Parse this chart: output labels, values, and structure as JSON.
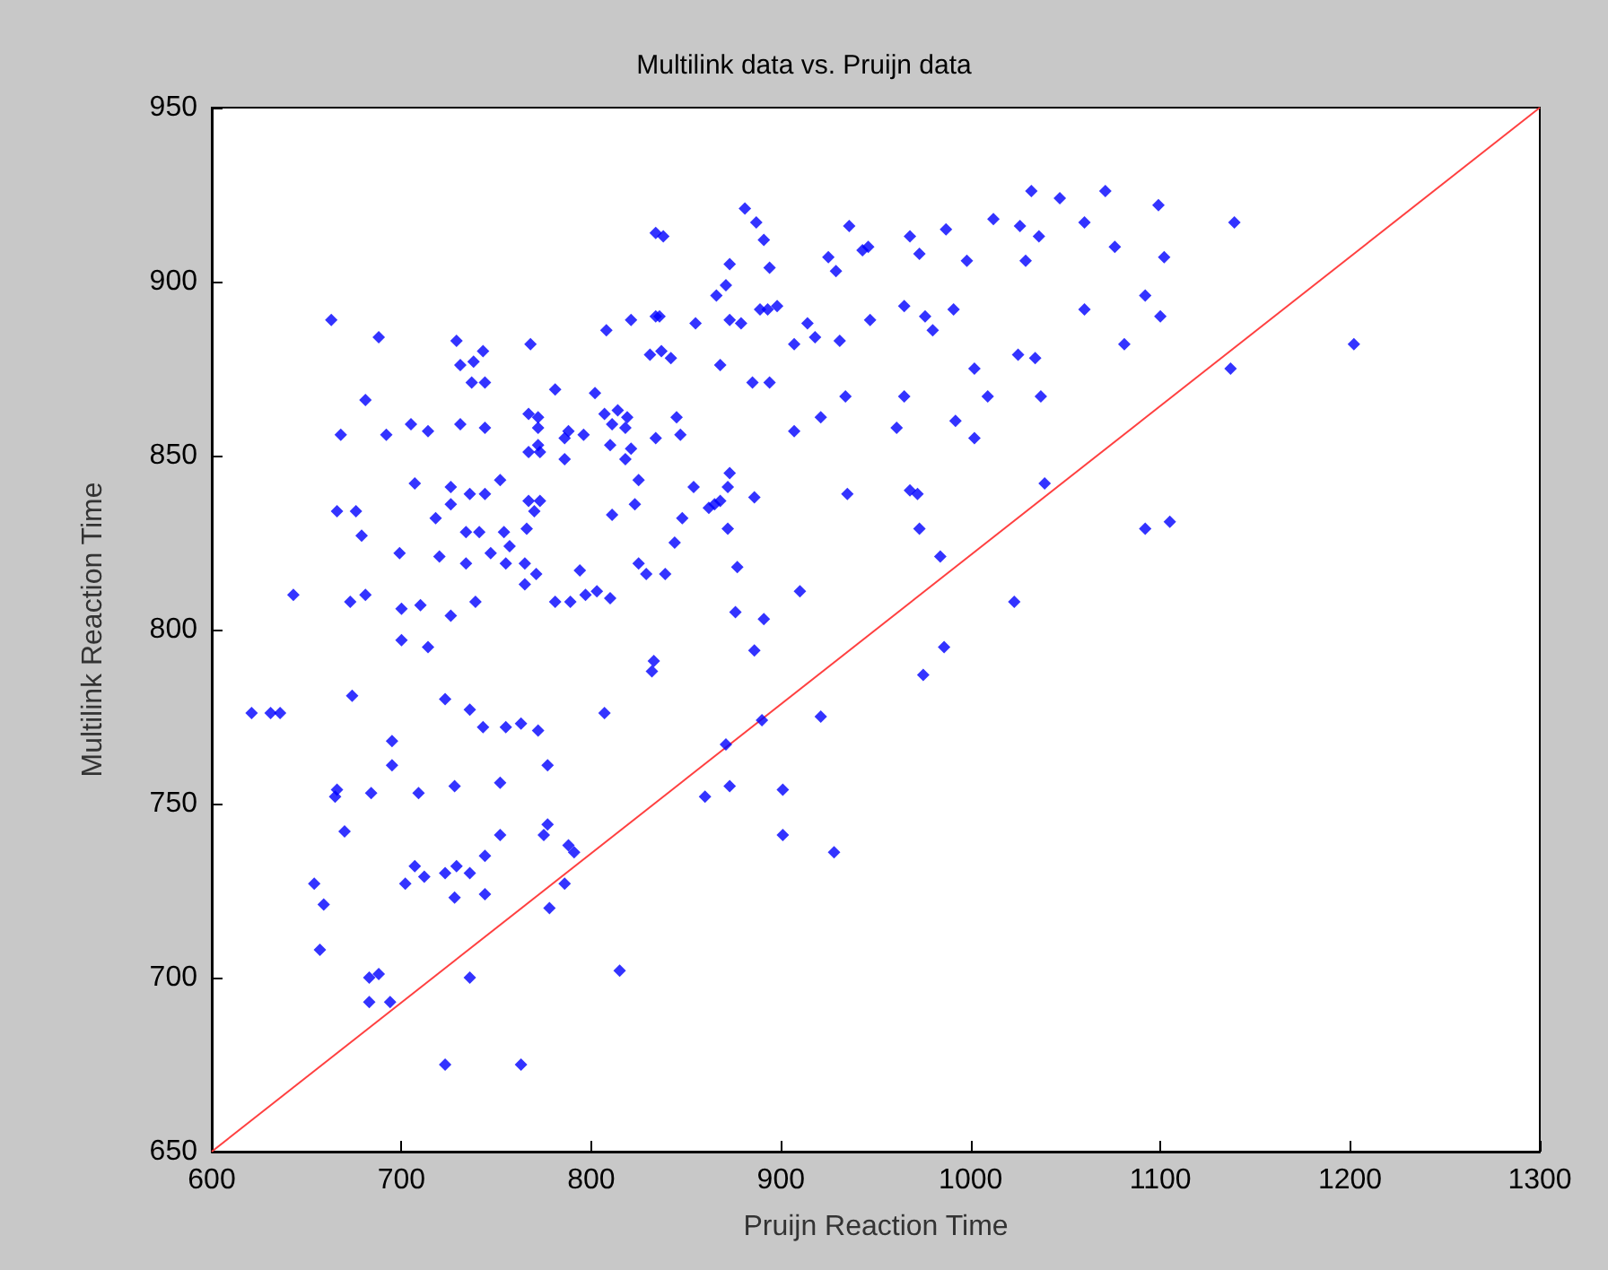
{
  "chart_data": {
    "type": "scatter",
    "title": "Multilink data vs. Pruijn data",
    "xlabel": "Pruijn Reaction Time",
    "ylabel": "Multilink Reaction Time",
    "xlim": [
      600,
      1300
    ],
    "xticks": [
      600,
      700,
      800,
      900,
      1000,
      1100,
      1200,
      1300
    ],
    "ylim": [
      650,
      950
    ],
    "yticks": [
      650,
      700,
      750,
      800,
      850,
      900,
      950
    ],
    "grid": false,
    "marker": "diamond",
    "series": [
      {
        "color": "#0000ff",
        "x": [
          663,
          688,
          729,
          743,
          738,
          731,
          768,
          808,
          821,
          834,
          737,
          744,
          781,
          802,
          681,
          807,
          814,
          819,
          811,
          818,
          767,
          772,
          731,
          744,
          705,
          714,
          692,
          668,
          772,
          788,
          796,
          786,
          772,
          767,
          773,
          786,
          810,
          821,
          818,
          825,
          752,
          707,
          726,
          736,
          744,
          726,
          767,
          773,
          770,
          666,
          676,
          679,
          718,
          811,
          823,
          734,
          741,
          754,
          766,
          757,
          699,
          720,
          747,
          734,
          755,
          765,
          771,
          765,
          794,
          825,
          643,
          673,
          681,
          700,
          710,
          726,
          739,
          781,
          789,
          797,
          803,
          810,
          700,
          714,
          674,
          723,
          736,
          621,
          631,
          636,
          807,
          743,
          755,
          763,
          772,
          695,
          695,
          777,
          666,
          665,
          684,
          709,
          728,
          752,
          670,
          777,
          775,
          752,
          788,
          791,
          744,
          707,
          729,
          723,
          736,
          712,
          702,
          654,
          786,
          659,
          728,
          744,
          778,
          657,
          683,
          688,
          736,
          683,
          694,
          815,
          723,
          763,
          881,
          887,
          891,
          873,
          894,
          834,
          838,
          936,
          925,
          929,
          943,
          946,
          968,
          973,
          987,
          998,
          1012,
          1026,
          1032,
          1036,
          1029,
          1047,
          1060,
          1071,
          871,
          866,
          836,
          855,
          873,
          879,
          889,
          893,
          898,
          914,
          918,
          907,
          931,
          947,
          965,
          976,
          980,
          991,
          1060,
          831,
          837,
          842,
          868,
          885,
          894,
          1002,
          1025,
          1034,
          1009,
          1037,
          934,
          965,
          921,
          907,
          961,
          992,
          1002,
          845,
          847,
          834,
          873,
          872,
          854,
          868,
          865,
          862,
          886,
          935,
          968,
          972,
          848,
          872,
          844,
          973,
          877,
          829,
          839,
          910,
          984,
          1039,
          876,
          891,
          886,
          1023,
          986,
          975,
          833,
          832,
          921,
          890,
          871,
          873,
          860,
          901,
          901,
          928,
          1099,
          1139,
          1076,
          1102,
          1092,
          1100,
          1081,
          1202,
          1137,
          1092,
          1105
        ],
        "values": [
          889,
          884,
          883,
          880,
          877,
          876,
          882,
          886,
          889,
          890,
          871,
          871,
          869,
          868,
          866,
          862,
          863,
          861,
          859,
          858,
          862,
          861,
          859,
          858,
          859,
          857,
          856,
          856,
          858,
          857,
          856,
          855,
          853,
          851,
          851,
          849,
          853,
          852,
          849,
          843,
          843,
          842,
          841,
          839,
          839,
          836,
          837,
          837,
          834,
          834,
          834,
          827,
          832,
          833,
          836,
          828,
          828,
          828,
          829,
          824,
          822,
          821,
          822,
          819,
          819,
          819,
          816,
          813,
          817,
          819,
          810,
          808,
          810,
          806,
          807,
          804,
          808,
          808,
          808,
          810,
          811,
          809,
          797,
          795,
          781,
          780,
          777,
          776,
          776,
          776,
          776,
          772,
          772,
          773,
          771,
          768,
          761,
          761,
          754,
          752,
          753,
          753,
          755,
          756,
          742,
          744,
          741,
          741,
          738,
          736,
          735,
          732,
          732,
          730,
          730,
          729,
          727,
          727,
          727,
          721,
          723,
          724,
          720,
          708,
          700,
          701,
          700,
          693,
          693,
          702,
          675,
          675,
          921,
          917,
          912,
          905,
          904,
          914,
          913,
          916,
          907,
          903,
          909,
          910,
          913,
          908,
          915,
          906,
          918,
          916,
          926,
          913,
          906,
          924,
          917,
          926,
          899,
          896,
          890,
          888,
          889,
          888,
          892,
          892,
          893,
          888,
          884,
          882,
          883,
          889,
          893,
          890,
          886,
          892,
          892,
          879,
          880,
          878,
          876,
          871,
          871,
          875,
          879,
          878,
          867,
          867,
          867,
          867,
          861,
          857,
          858,
          860,
          855,
          861,
          856,
          855,
          845,
          841,
          841,
          837,
          836,
          835,
          838,
          839,
          840,
          839,
          832,
          829,
          825,
          829,
          818,
          816,
          816,
          811,
          821,
          842,
          805,
          803,
          794,
          808,
          795,
          787,
          791,
          788,
          775,
          774,
          767,
          755,
          752,
          754,
          741,
          736,
          922,
          917,
          910,
          907,
          896,
          890,
          882,
          882,
          875,
          829,
          831
        ]
      },
      {
        "type": "line",
        "marker": "none",
        "color": "#ff4040",
        "x": [
          600,
          1300
        ],
        "values": [
          650,
          950
        ]
      }
    ]
  }
}
